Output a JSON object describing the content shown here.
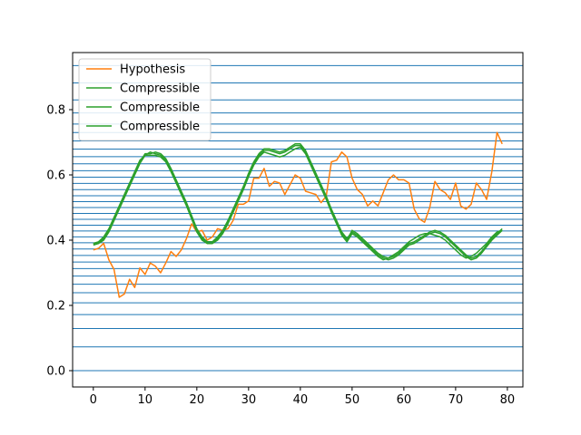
{
  "chart_data": {
    "type": "line",
    "title": "",
    "xlabel": "",
    "ylabel": "",
    "xlim": [
      -4,
      83
    ],
    "ylim": [
      -0.05,
      0.975
    ],
    "xticks": [
      0,
      10,
      20,
      30,
      40,
      50,
      60,
      70,
      80
    ],
    "yticks": [
      0.0,
      0.2,
      0.4,
      0.6,
      0.8
    ],
    "grid": false,
    "legend": {
      "placement": "upper-left"
    },
    "hlines": {
      "color": "#1f77b4",
      "values": [
        0.0,
        0.073,
        0.129,
        0.172,
        0.208,
        0.239,
        0.265,
        0.29,
        0.313,
        0.333,
        0.353,
        0.373,
        0.392,
        0.41,
        0.428,
        0.446,
        0.464,
        0.482,
        0.5,
        0.518,
        0.536,
        0.555,
        0.574,
        0.593,
        0.613,
        0.634,
        0.656,
        0.679,
        0.704,
        0.73,
        0.756,
        0.79,
        0.83,
        0.882,
        0.935
      ]
    },
    "series": [
      {
        "name": "Hypothesis",
        "color": "#ff7f0e",
        "x": [
          0,
          1,
          2,
          3,
          4,
          5,
          6,
          7,
          8,
          9,
          10,
          11,
          12,
          13,
          14,
          15,
          16,
          17,
          18,
          19,
          20,
          21,
          22,
          23,
          24,
          25,
          26,
          27,
          28,
          29,
          30,
          31,
          32,
          33,
          34,
          35,
          36,
          37,
          38,
          39,
          40,
          41,
          42,
          43,
          44,
          45,
          46,
          47,
          48,
          49,
          50,
          51,
          52,
          53,
          54,
          55,
          56,
          57,
          58,
          59,
          60,
          61,
          62,
          63,
          64,
          65,
          66,
          67,
          68,
          69,
          70,
          71,
          72,
          73,
          74,
          75,
          76,
          77,
          78,
          79
        ],
        "y": [
          0.37,
          0.375,
          0.39,
          0.34,
          0.31,
          0.225,
          0.235,
          0.28,
          0.255,
          0.315,
          0.295,
          0.33,
          0.32,
          0.3,
          0.33,
          0.365,
          0.35,
          0.37,
          0.405,
          0.45,
          0.425,
          0.43,
          0.4,
          0.41,
          0.435,
          0.43,
          0.435,
          0.46,
          0.51,
          0.51,
          0.52,
          0.59,
          0.59,
          0.62,
          0.565,
          0.58,
          0.575,
          0.54,
          0.57,
          0.6,
          0.59,
          0.55,
          0.545,
          0.54,
          0.515,
          0.535,
          0.64,
          0.645,
          0.67,
          0.655,
          0.59,
          0.555,
          0.54,
          0.505,
          0.52,
          0.505,
          0.545,
          0.585,
          0.6,
          0.585,
          0.585,
          0.575,
          0.495,
          0.465,
          0.455,
          0.5,
          0.58,
          0.555,
          0.545,
          0.525,
          0.575,
          0.505,
          0.495,
          0.51,
          0.575,
          0.555,
          0.525,
          0.61,
          0.73,
          0.695
        ]
      },
      {
        "name": "Compressible",
        "color": "#2ca02c",
        "x": [
          0,
          1,
          2,
          3,
          4,
          5,
          6,
          7,
          8,
          9,
          10,
          11,
          12,
          13,
          14,
          15,
          16,
          17,
          18,
          19,
          20,
          21,
          22,
          23,
          24,
          25,
          26,
          27,
          28,
          29,
          30,
          31,
          32,
          33,
          34,
          35,
          36,
          37,
          38,
          39,
          40,
          41,
          42,
          43,
          44,
          45,
          46,
          47,
          48,
          49,
          50,
          51,
          52,
          53,
          54,
          55,
          56,
          57,
          58,
          59,
          60,
          61,
          62,
          63,
          64,
          65,
          66,
          67,
          68,
          69,
          70,
          71,
          72,
          73,
          74,
          75,
          76,
          77,
          78,
          79
        ],
        "y": [
          0.39,
          0.39,
          0.4,
          0.425,
          0.46,
          0.495,
          0.53,
          0.565,
          0.6,
          0.635,
          0.66,
          0.67,
          0.665,
          0.66,
          0.645,
          0.615,
          0.58,
          0.545,
          0.51,
          0.47,
          0.43,
          0.405,
          0.39,
          0.39,
          0.405,
          0.425,
          0.455,
          0.49,
          0.525,
          0.56,
          0.6,
          0.635,
          0.66,
          0.675,
          0.675,
          0.67,
          0.665,
          0.67,
          0.68,
          0.69,
          0.69,
          0.67,
          0.635,
          0.6,
          0.565,
          0.53,
          0.49,
          0.455,
          0.42,
          0.4,
          0.43,
          0.42,
          0.405,
          0.39,
          0.375,
          0.36,
          0.35,
          0.345,
          0.35,
          0.36,
          0.375,
          0.39,
          0.395,
          0.405,
          0.415,
          0.425,
          0.43,
          0.425,
          0.415,
          0.4,
          0.385,
          0.37,
          0.355,
          0.345,
          0.35,
          0.365,
          0.385,
          0.405,
          0.42,
          0.435
        ]
      },
      {
        "name": "Compressible",
        "color": "#2ca02c",
        "x": [
          0,
          1,
          2,
          3,
          4,
          5,
          6,
          7,
          8,
          9,
          10,
          11,
          12,
          13,
          14,
          15,
          16,
          17,
          18,
          19,
          20,
          21,
          22,
          23,
          24,
          25,
          26,
          27,
          28,
          29,
          30,
          31,
          32,
          33,
          34,
          35,
          36,
          37,
          38,
          39,
          40,
          41,
          42,
          43,
          44,
          45,
          46,
          47,
          48,
          49,
          50,
          51,
          52,
          53,
          54,
          55,
          56,
          57,
          58,
          59,
          60,
          61,
          62,
          63,
          64,
          65,
          66,
          67,
          68,
          69,
          70,
          71,
          72,
          73,
          74,
          75,
          76,
          77,
          78,
          79
        ],
        "y": [
          0.385,
          0.39,
          0.405,
          0.43,
          0.465,
          0.5,
          0.535,
          0.57,
          0.605,
          0.64,
          0.665,
          0.665,
          0.67,
          0.665,
          0.65,
          0.62,
          0.585,
          0.55,
          0.515,
          0.475,
          0.435,
          0.41,
          0.395,
          0.395,
          0.41,
          0.43,
          0.46,
          0.495,
          0.53,
          0.565,
          0.605,
          0.64,
          0.665,
          0.68,
          0.68,
          0.675,
          0.67,
          0.675,
          0.685,
          0.695,
          0.695,
          0.675,
          0.64,
          0.605,
          0.57,
          0.535,
          0.495,
          0.46,
          0.425,
          0.405,
          0.425,
          0.415,
          0.4,
          0.385,
          0.37,
          0.355,
          0.345,
          0.34,
          0.345,
          0.355,
          0.37,
          0.385,
          0.39,
          0.4,
          0.41,
          0.42,
          0.425,
          0.42,
          0.41,
          0.395,
          0.38,
          0.365,
          0.35,
          0.34,
          0.345,
          0.36,
          0.38,
          0.4,
          0.415,
          0.43
        ]
      },
      {
        "name": "Compressible",
        "color": "#2ca02c",
        "x": [
          0,
          1,
          2,
          3,
          4,
          5,
          6,
          7,
          8,
          9,
          10,
          11,
          12,
          13,
          14,
          15,
          16,
          17,
          18,
          19,
          20,
          21,
          22,
          23,
          24,
          25,
          26,
          27,
          28,
          29,
          30,
          31,
          32,
          33,
          34,
          35,
          36,
          37,
          38,
          39,
          40,
          41,
          42,
          43,
          44,
          45,
          46,
          47,
          48,
          49,
          50,
          51,
          52,
          53,
          54,
          55,
          56,
          57,
          58,
          59,
          60,
          61,
          62,
          63,
          64,
          65,
          66,
          67,
          68,
          69,
          70,
          71,
          72,
          73,
          74,
          75,
          76,
          77,
          78,
          79
        ],
        "y": [
          0.39,
          0.395,
          0.41,
          0.435,
          0.47,
          0.505,
          0.54,
          0.575,
          0.61,
          0.645,
          0.66,
          0.66,
          0.66,
          0.655,
          0.64,
          0.61,
          0.575,
          0.54,
          0.505,
          0.465,
          0.425,
          0.4,
          0.39,
          0.39,
          0.4,
          0.42,
          0.45,
          0.485,
          0.52,
          0.555,
          0.595,
          0.63,
          0.655,
          0.67,
          0.665,
          0.66,
          0.655,
          0.66,
          0.67,
          0.68,
          0.685,
          0.665,
          0.63,
          0.595,
          0.56,
          0.525,
          0.485,
          0.45,
          0.415,
          0.395,
          0.42,
          0.41,
          0.395,
          0.38,
          0.365,
          0.35,
          0.34,
          0.345,
          0.355,
          0.365,
          0.38,
          0.395,
          0.405,
          0.415,
          0.42,
          0.42,
          0.415,
          0.41,
          0.4,
          0.385,
          0.37,
          0.355,
          0.345,
          0.35,
          0.36,
          0.375,
          0.39,
          0.41,
          0.425,
          0.43
        ]
      }
    ]
  }
}
